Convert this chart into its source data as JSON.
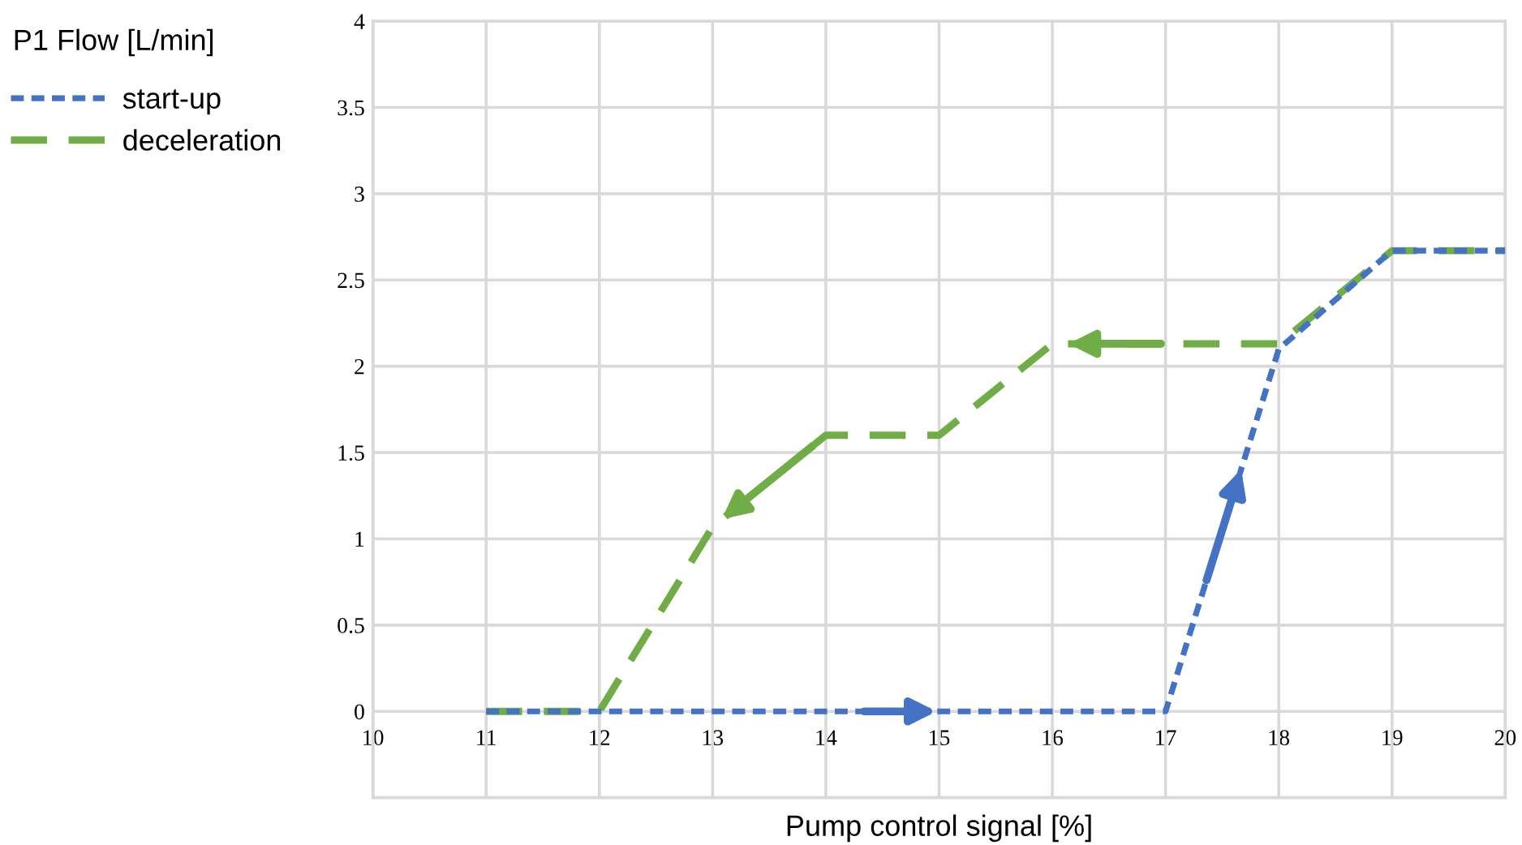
{
  "chart_data": {
    "type": "line",
    "xlabel": "Pump control signal [%]",
    "ylabel": "P1 Flow [L/min]",
    "series": [
      {
        "name": "start-up",
        "color": "#4472c4",
        "line_style": "dotted",
        "x": [
          11,
          17,
          18,
          19,
          20
        ],
        "values": [
          0,
          0,
          2.1,
          2.67,
          2.67
        ]
      },
      {
        "name": "deceleration",
        "color": "#70ad47",
        "line_style": "dashed",
        "x": [
          11,
          12,
          13,
          14,
          15,
          16,
          18,
          19,
          20
        ],
        "values": [
          0,
          0,
          1.07,
          1.6,
          1.6,
          2.13,
          2.13,
          2.67,
          2.67
        ]
      }
    ],
    "xlim": [
      10,
      20
    ],
    "xticks": [
      10,
      11,
      12,
      13,
      14,
      15,
      16,
      17,
      18,
      19,
      20
    ],
    "ylim": [
      -0.5,
      4
    ],
    "yticks": [
      {
        "value": -0.5,
        "label": null
      },
      0,
      0.5,
      1,
      1.5,
      2,
      2.5,
      3,
      3.5,
      4
    ],
    "grid": true,
    "legend": "top left",
    "marker": "none"
  }
}
